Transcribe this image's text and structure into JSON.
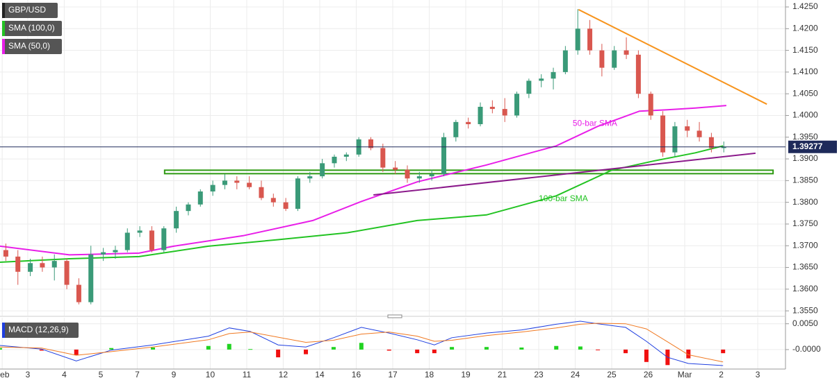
{
  "chart_data": [
    {
      "type": "candlestick",
      "xlim": [
        0.24,
        21.76
      ],
      "ylim": [
        1.3539,
        1.4266
      ],
      "yticks": [
        {
          "value": 1.355,
          "label": "1.3550"
        },
        {
          "value": 1.36,
          "label": "1.3600"
        },
        {
          "value": 1.365,
          "label": "1.3650"
        },
        {
          "value": 1.37,
          "label": "1.3700"
        },
        {
          "value": 1.375,
          "label": "1.3750"
        },
        {
          "value": 1.38,
          "label": "1.3800"
        },
        {
          "value": 1.385,
          "label": "1.3850"
        },
        {
          "value": 1.39,
          "label": "1.3900"
        },
        {
          "value": 1.395,
          "label": "1.3950"
        },
        {
          "value": 1.4,
          "label": "1.4000"
        },
        {
          "value": 1.405,
          "label": "1.4050"
        },
        {
          "value": 1.41,
          "label": "1.4100"
        },
        {
          "value": 1.415,
          "label": "1.4150"
        },
        {
          "value": 1.42,
          "label": "1.4200"
        },
        {
          "value": 1.425,
          "label": "1.4250"
        }
      ],
      "grid": true,
      "candles": {
        "name": "GBP/USD",
        "up_color": "#3a9a78",
        "down_color": "#d9574f",
        "x": [
          0.4,
          0.73,
          1.07,
          1.4,
          1.73,
          2.07,
          2.4,
          2.73,
          3.07,
          3.4,
          3.73,
          4.07,
          4.4,
          4.73,
          5.07,
          5.4,
          5.73,
          6.07,
          6.4,
          6.73,
          7.07,
          7.4,
          7.73,
          8.07,
          8.4,
          8.73,
          9.07,
          9.4,
          9.73,
          10.07,
          10.4,
          10.73,
          11.07,
          11.4,
          11.73,
          12.07,
          12.4,
          12.73,
          13.07,
          13.4,
          13.73,
          14.07,
          14.4,
          14.73,
          15.07,
          15.4,
          15.73,
          16.07,
          16.4,
          16.73,
          17.07,
          17.4,
          17.73,
          18.07,
          18.4,
          18.73,
          19.07,
          19.4,
          19.73,
          20.07
        ],
        "open": [
          1.369,
          1.3675,
          1.364,
          1.366,
          1.365,
          1.3665,
          1.361,
          1.357,
          1.368,
          1.3685,
          1.369,
          1.373,
          1.3735,
          1.369,
          1.374,
          1.378,
          1.3795,
          1.3825,
          1.384,
          1.385,
          1.3845,
          1.3835,
          1.381,
          1.38,
          1.3785,
          1.3855,
          1.386,
          1.389,
          1.3905,
          1.391,
          1.3945,
          1.3925,
          1.388,
          1.3875,
          1.3855,
          1.386,
          1.3865,
          1.395,
          1.3985,
          1.398,
          1.402,
          1.4015,
          1.4,
          1.405,
          1.408,
          1.4085,
          1.41,
          1.415,
          1.42,
          1.415,
          1.411,
          1.415,
          1.414,
          1.405,
          1.4,
          1.3915,
          1.3975,
          1.3965,
          1.395,
          1.3925
        ],
        "high": [
          1.3705,
          1.369,
          1.367,
          1.3675,
          1.368,
          1.367,
          1.3625,
          1.37,
          1.3695,
          1.37,
          1.374,
          1.3745,
          1.3745,
          1.3745,
          1.379,
          1.38,
          1.383,
          1.385,
          1.3865,
          1.386,
          1.386,
          1.385,
          1.382,
          1.381,
          1.386,
          1.387,
          1.39,
          1.391,
          1.3915,
          1.395,
          1.395,
          1.3935,
          1.3895,
          1.3885,
          1.387,
          1.3875,
          1.396,
          1.399,
          1.3995,
          1.403,
          1.4035,
          1.404,
          1.4055,
          1.4085,
          1.4095,
          1.411,
          1.416,
          1.4245,
          1.422,
          1.4165,
          1.416,
          1.418,
          1.415,
          1.4055,
          1.401,
          1.3985,
          1.399,
          1.3985,
          1.396,
          1.394
        ],
        "low": [
          1.3665,
          1.361,
          1.363,
          1.364,
          1.362,
          1.36,
          1.3565,
          1.3565,
          1.3665,
          1.367,
          1.3685,
          1.372,
          1.3685,
          1.3685,
          1.373,
          1.377,
          1.379,
          1.3815,
          1.383,
          1.383,
          1.383,
          1.3805,
          1.379,
          1.378,
          1.378,
          1.3845,
          1.3855,
          1.388,
          1.3895,
          1.3905,
          1.392,
          1.387,
          1.3865,
          1.3845,
          1.3845,
          1.385,
          1.386,
          1.394,
          1.397,
          1.3975,
          1.4005,
          1.3985,
          1.3995,
          1.404,
          1.4065,
          1.406,
          1.4095,
          1.414,
          1.414,
          1.409,
          1.4105,
          1.413,
          1.404,
          1.399,
          1.3905,
          1.3905,
          1.395,
          1.394,
          1.3915,
          1.3915
        ],
        "close": [
          1.3675,
          1.364,
          1.366,
          1.365,
          1.3665,
          1.361,
          1.357,
          1.368,
          1.3685,
          1.369,
          1.373,
          1.3735,
          1.369,
          1.374,
          1.378,
          1.3795,
          1.3825,
          1.384,
          1.385,
          1.3845,
          1.3835,
          1.381,
          1.38,
          1.3785,
          1.3855,
          1.386,
          1.389,
          1.3905,
          1.391,
          1.3945,
          1.3925,
          1.388,
          1.3875,
          1.3855,
          1.386,
          1.3865,
          1.395,
          1.3985,
          1.398,
          1.402,
          1.4015,
          1.4,
          1.405,
          1.408,
          1.4085,
          1.41,
          1.415,
          1.42,
          1.415,
          1.411,
          1.415,
          1.414,
          1.405,
          1.4,
          1.3915,
          1.3975,
          1.3965,
          1.395,
          1.3925,
          1.39277
        ]
      },
      "series": [
        {
          "name": "SMA (100,0)",
          "color": "#22c322",
          "x": [
            0.24,
            2.14,
            4.05,
            5.95,
            7.86,
            9.76,
            11.67,
            13.57,
            15.48,
            17.0,
            18.14,
            19.29,
            20.05
          ],
          "values": [
            1.3662,
            1.367,
            1.3675,
            1.3699,
            1.3714,
            1.373,
            1.3758,
            1.3771,
            1.3815,
            1.3874,
            1.3895,
            1.3914,
            1.393
          ]
        },
        {
          "name": "SMA (50,0)",
          "color": "#e81ee8",
          "x": [
            0.24,
            2.14,
            4.05,
            5.0,
            6.9,
            8.81,
            10.14,
            11.67,
            13.57,
            15.48,
            16.62,
            17.76,
            18.52,
            19.29,
            20.14
          ],
          "values": [
            1.3699,
            1.3679,
            1.3683,
            1.3699,
            1.3723,
            1.3758,
            1.3802,
            1.3847,
            1.3886,
            1.393,
            1.3975,
            1.401,
            1.4013,
            1.4017,
            1.4023
          ]
        }
      ],
      "trendlines": [
        {
          "color": "#f7941d",
          "x": [
            16.09,
            21.25
          ],
          "values": [
            1.4244,
            1.4026
          ]
        },
        {
          "color": "#8b1a8b",
          "x": [
            10.47,
            20.94
          ],
          "values": [
            1.3817,
            1.3913
          ]
        }
      ],
      "band": {
        "color": "#2e9a12",
        "x": [
          4.75,
          21.42
        ],
        "values": [
          1.3874,
          1.3866
        ]
      },
      "last_price": 1.39277,
      "annotations": [
        {
          "text": "50-bar SMA",
          "color": "#e81ee8",
          "x": 15.93,
          "y": 1.3981
        },
        {
          "text": "100-bar SMA",
          "color": "#22c322",
          "x": 15.0,
          "y": 1.3808
        }
      ]
    },
    {
      "type": "macd",
      "title": "MACD (12,26,9)",
      "xlim": [
        0.24,
        21.76
      ],
      "ylim": [
        -0.0035,
        0.0059
      ],
      "yticks": [
        {
          "value": 0.005,
          "label": "0.0050"
        },
        {
          "value": 0,
          "label": "-0.0000"
        }
      ],
      "xticks": [
        {
          "value": 0.3,
          "label": "Feb"
        },
        {
          "value": 1,
          "label": "3"
        },
        {
          "value": 2,
          "label": "4"
        },
        {
          "value": 3,
          "label": "5"
        },
        {
          "value": 4,
          "label": "7"
        },
        {
          "value": 5,
          "label": "9"
        },
        {
          "value": 6,
          "label": "10"
        },
        {
          "value": 7,
          "label": "11"
        },
        {
          "value": 8,
          "label": "12"
        },
        {
          "value": 9,
          "label": "14"
        },
        {
          "value": 10,
          "label": "16"
        },
        {
          "value": 11,
          "label": "17"
        },
        {
          "value": 12,
          "label": "18"
        },
        {
          "value": 13,
          "label": "19"
        },
        {
          "value": 14,
          "label": "21"
        },
        {
          "value": 15,
          "label": "23"
        },
        {
          "value": 16,
          "label": "24"
        },
        {
          "value": 17,
          "label": "25"
        },
        {
          "value": 18,
          "label": "26"
        },
        {
          "value": 19,
          "label": "Mar"
        },
        {
          "value": 20,
          "label": "2"
        },
        {
          "value": 21,
          "label": "3"
        }
      ],
      "x": [
        0.24,
        1.38,
        2.33,
        3.29,
        4.43,
        5.95,
        6.52,
        7.1,
        7.86,
        8.62,
        9.38,
        10.14,
        10.9,
        11.67,
        12.14,
        12.62,
        13.57,
        14.53,
        15.48,
        16.14,
        16.62,
        17.38,
        17.95,
        18.53,
        19.1,
        20.05
      ],
      "series": [
        {
          "color": "#1f3fe0",
          "values": [
            0.0008,
            0.0001,
            -0.0022,
            -0.0001,
            0.0009,
            0.0026,
            0.0042,
            0.0035,
            0.0009,
            0.0005,
            0.0023,
            0.0043,
            0.0032,
            0.0019,
            0.0009,
            0.0023,
            0.0032,
            0.0038,
            0.0049,
            0.0055,
            0.005,
            0.0043,
            0.0016,
            -0.0015,
            -0.0027,
            -0.0031
          ]
        },
        {
          "color": "#f07820",
          "values": [
            0.0005,
            0.0003,
            -0.0011,
            -0.0004,
            0.0005,
            0.0019,
            0.0031,
            0.0034,
            0.0024,
            0.0014,
            0.0018,
            0.003,
            0.0034,
            0.0026,
            0.0016,
            0.0018,
            0.0027,
            0.0034,
            0.0042,
            0.0049,
            0.0051,
            0.005,
            0.004,
            0.0015,
            -0.001,
            -0.0024
          ]
        }
      ],
      "histogram": {
        "up_color": "#22d322",
        "down_color": "#f01010",
        "values": [
          0.0003,
          -0.0002,
          -0.0011,
          0.0003,
          0.0004,
          0.0007,
          0.0011,
          0.0001,
          -0.0015,
          -0.0009,
          0.0005,
          0.0013,
          -0.0002,
          -0.0007,
          -0.0007,
          0.0005,
          0.0005,
          0.0004,
          0.0007,
          0.0006,
          -0.0001,
          -0.0007,
          -0.0024,
          -0.003,
          -0.0017,
          -0.0007
        ]
      }
    }
  ]
}
